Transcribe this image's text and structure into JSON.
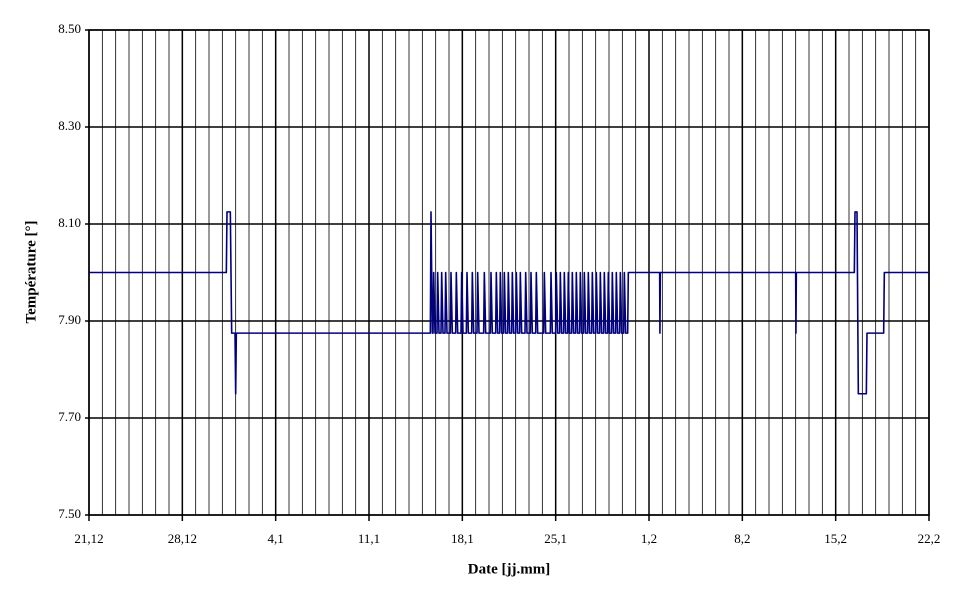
{
  "chart_data": {
    "type": "line",
    "x_label": "Date [jj.mm]",
    "y_label": "Température [°]",
    "xlim": [
      0,
      63
    ],
    "xticks": [
      {
        "value": 0,
        "label": "21,12"
      },
      {
        "value": 7,
        "label": "28,12"
      },
      {
        "value": 14,
        "label": "4,1"
      },
      {
        "value": 21,
        "label": "11,1"
      },
      {
        "value": 28,
        "label": "18,1"
      },
      {
        "value": 35,
        "label": "25,1"
      },
      {
        "value": 42,
        "label": "1,2"
      },
      {
        "value": 49,
        "label": "8,2"
      },
      {
        "value": 56,
        "label": "15,2"
      },
      {
        "value": 63,
        "label": "22,2"
      }
    ],
    "xminor_ticks": [
      0,
      1,
      2,
      3,
      4,
      5,
      6,
      7,
      8,
      9,
      10,
      11,
      12,
      13,
      14,
      15,
      16,
      17,
      18,
      19,
      20,
      21,
      22,
      23,
      24,
      25,
      26,
      27,
      28,
      29,
      30,
      31,
      32,
      33,
      34,
      35,
      36,
      37,
      38,
      39,
      40,
      41,
      42,
      43,
      44,
      45,
      46,
      47,
      48,
      49,
      50,
      51,
      52,
      53,
      54,
      55,
      56,
      57,
      58,
      59,
      60,
      61,
      62,
      63
    ],
    "ylim": [
      7.5,
      8.5
    ],
    "yticks": [
      {
        "value": 7.5,
        "label": "7.50"
      },
      {
        "value": 7.7,
        "label": "7.70"
      },
      {
        "value": 7.9,
        "label": "7.90"
      },
      {
        "value": 8.1,
        "label": "8.10"
      },
      {
        "value": 8.3,
        "label": "8.30"
      },
      {
        "value": 8.5,
        "label": "8.50"
      }
    ],
    "grid": true,
    "color": "#000080",
    "x": [
      0,
      10.3,
      10.35,
      10.6,
      10.7,
      10.95,
      11.0,
      11.05,
      25.6,
      25.65,
      25.75,
      25.8,
      25.85,
      25.95,
      26.1,
      26.15,
      26.25,
      26.4,
      26.45,
      26.55,
      26.7,
      26.75,
      26.85,
      27.1,
      27.15,
      27.25,
      27.5,
      27.55,
      27.65,
      27.9,
      27.95,
      28.05,
      28.3,
      28.35,
      28.45,
      28.7,
      28.75,
      28.85,
      29.1,
      29.15,
      29.25,
      29.6,
      29.65,
      29.75,
      30.1,
      30.15,
      30.25,
      30.5,
      30.55,
      30.65,
      30.8,
      30.85,
      30.95,
      31.1,
      31.15,
      31.25,
      31.4,
      31.45,
      31.55,
      31.7,
      31.75,
      31.85,
      32.0,
      32.05,
      32.15,
      32.3,
      32.35,
      32.45,
      32.7,
      32.75,
      32.85,
      33.1,
      33.15,
      33.25,
      33.5,
      33.55,
      33.65,
      34.1,
      34.15,
      34.25,
      34.6,
      34.65,
      34.75,
      35.0,
      35.05,
      35.15,
      35.3,
      35.35,
      35.45,
      35.6,
      35.65,
      35.75,
      35.9,
      35.95,
      36.05,
      36.2,
      36.25,
      36.35,
      36.5,
      36.55,
      36.65,
      36.8,
      36.85,
      36.95,
      37.1,
      37.15,
      37.25,
      37.4,
      37.45,
      37.55,
      37.7,
      37.75,
      37.85,
      38.0,
      38.05,
      38.15,
      38.3,
      38.35,
      38.45,
      38.6,
      38.65,
      38.75,
      38.9,
      38.95,
      39.05,
      39.2,
      39.25,
      39.35,
      39.5,
      39.55,
      39.65,
      39.8,
      39.85,
      39.95,
      40.1,
      40.15,
      40.25,
      40.4,
      40.45,
      42.8,
      42.82,
      42.85,
      53.0,
      53.02,
      53.05,
      57.4,
      57.45,
      57.6,
      57.7,
      58.3,
      58.35,
      59.6,
      59.65,
      63
    ],
    "values": [
      8,
      8,
      8.125,
      8.125,
      7.875,
      7.875,
      7.75,
      7.875,
      7.875,
      8.125,
      7.875,
      7.875,
      8,
      7.875,
      7.875,
      8,
      7.875,
      7.875,
      8,
      7.875,
      7.875,
      8,
      7.875,
      7.875,
      8,
      7.875,
      7.875,
      8,
      7.875,
      7.875,
      8,
      7.875,
      7.875,
      8,
      7.875,
      7.875,
      8,
      7.875,
      7.875,
      8,
      7.875,
      7.875,
      8,
      7.875,
      7.875,
      8,
      7.875,
      7.875,
      8,
      7.875,
      7.875,
      8,
      7.875,
      7.875,
      8,
      7.875,
      7.875,
      8,
      7.875,
      7.875,
      8,
      7.875,
      7.875,
      8,
      7.875,
      7.875,
      8,
      7.875,
      7.875,
      8,
      7.875,
      7.875,
      8,
      7.875,
      7.875,
      8,
      7.875,
      7.875,
      8,
      7.875,
      7.875,
      8,
      7.875,
      7.875,
      8,
      7.875,
      7.875,
      8,
      7.875,
      7.875,
      8,
      7.875,
      7.875,
      8,
      7.875,
      7.875,
      8,
      7.875,
      7.875,
      8,
      7.875,
      7.875,
      8,
      7.875,
      7.875,
      8,
      7.875,
      7.875,
      8,
      7.875,
      7.875,
      8,
      7.875,
      7.875,
      8,
      7.875,
      7.875,
      8,
      7.875,
      7.875,
      8,
      7.875,
      7.875,
      8,
      7.875,
      7.875,
      8,
      7.875,
      7.875,
      8,
      7.875,
      7.875,
      8,
      7.875,
      7.875,
      8,
      7.875,
      7.875,
      8,
      8,
      7.875,
      8,
      8,
      7.875,
      8,
      8,
      8.125,
      8.125,
      7.75,
      7.75,
      7.875,
      7.875,
      8,
      8
    ]
  }
}
